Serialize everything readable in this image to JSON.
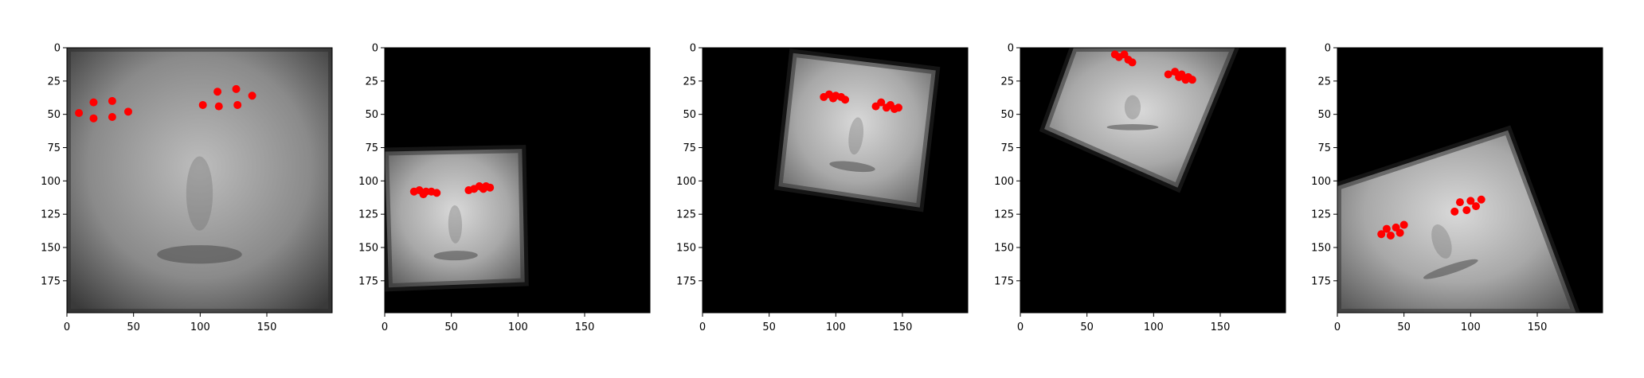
{
  "colors": {
    "background": "#ffffff",
    "axis": "#000000",
    "image_fill": "#000000",
    "landmark": "#ff0000"
  },
  "axis_range": {
    "min": 0,
    "max": 199
  },
  "x_ticks": [
    0,
    50,
    100,
    150
  ],
  "y_ticks": [
    0,
    25,
    50,
    75,
    100,
    125,
    150,
    175
  ],
  "x_tick_labels": [
    "0",
    "50",
    "100",
    "150"
  ],
  "y_tick_labels": [
    "0",
    "25",
    "50",
    "75",
    "100",
    "125",
    "150",
    "175"
  ],
  "panels": [
    {
      "name": "panel-1",
      "face_icon": "face-photo-close-up",
      "face_quad": [
        [
          0,
          0
        ],
        [
          199,
          0
        ],
        [
          199,
          199
        ],
        [
          0,
          199
        ]
      ],
      "tone": [
        0.55,
        0.25
      ],
      "landmarks": [
        [
          9,
          49
        ],
        [
          20,
          41
        ],
        [
          20,
          53
        ],
        [
          34,
          40
        ],
        [
          34,
          52
        ],
        [
          46,
          48
        ],
        [
          102,
          43
        ],
        [
          113,
          33
        ],
        [
          114,
          44
        ],
        [
          127,
          31
        ],
        [
          128,
          43
        ],
        [
          139,
          36
        ]
      ]
    },
    {
      "name": "panel-2",
      "face_icon": "face-photo-older-woman",
      "face_quad": [
        [
          0,
          78
        ],
        [
          103,
          76
        ],
        [
          105,
          176
        ],
        [
          3,
          180
        ]
      ],
      "tone": [
        0.72,
        0.35
      ],
      "landmarks": [
        [
          22,
          108
        ],
        [
          26,
          107
        ],
        [
          29,
          110
        ],
        [
          31,
          108
        ],
        [
          35,
          108
        ],
        [
          39,
          109
        ],
        [
          63,
          107
        ],
        [
          67,
          106
        ],
        [
          71,
          104
        ],
        [
          74,
          106
        ],
        [
          76,
          104
        ],
        [
          79,
          105
        ]
      ]
    },
    {
      "name": "panel-3",
      "face_icon": "face-photo-young-woman",
      "face_quad": [
        [
          68,
          4
        ],
        [
          175,
          17
        ],
        [
          163,
          120
        ],
        [
          57,
          104
        ]
      ],
      "tone": [
        0.7,
        0.3
      ],
      "landmarks": [
        [
          91,
          37
        ],
        [
          95,
          35
        ],
        [
          98,
          38
        ],
        [
          100,
          36
        ],
        [
          104,
          37
        ],
        [
          107,
          39
        ],
        [
          130,
          44
        ],
        [
          134,
          41
        ],
        [
          138,
          45
        ],
        [
          141,
          43
        ],
        [
          144,
          46
        ],
        [
          147,
          45
        ]
      ]
    },
    {
      "name": "panel-4",
      "face_icon": "face-photo-tilted-woman",
      "face_quad": [
        [
          40,
          0
        ],
        [
          161,
          0
        ],
        [
          118,
          105
        ],
        [
          18,
          61
        ]
      ],
      "tone": [
        0.62,
        0.22
      ],
      "landmarks": [
        [
          71,
          5
        ],
        [
          74,
          7
        ],
        [
          78,
          5
        ],
        [
          81,
          9
        ],
        [
          84,
          11
        ],
        [
          111,
          20
        ],
        [
          116,
          18
        ],
        [
          119,
          22
        ],
        [
          121,
          20
        ],
        [
          124,
          24
        ],
        [
          126,
          22
        ],
        [
          129,
          24
        ]
      ]
    },
    {
      "name": "panel-5",
      "face_icon": "face-photo-smiling-woman",
      "face_quad": [
        [
          0,
          104
        ],
        [
          128,
          62
        ],
        [
          179,
          199
        ],
        [
          0,
          199
        ]
      ],
      "tone": [
        0.68,
        0.28
      ],
      "landmarks": [
        [
          33,
          140
        ],
        [
          37,
          136
        ],
        [
          40,
          141
        ],
        [
          44,
          135
        ],
        [
          47,
          139
        ],
        [
          50,
          133
        ],
        [
          88,
          123
        ],
        [
          92,
          116
        ],
        [
          97,
          122
        ],
        [
          100,
          115
        ],
        [
          104,
          119
        ],
        [
          108,
          114
        ]
      ]
    }
  ]
}
